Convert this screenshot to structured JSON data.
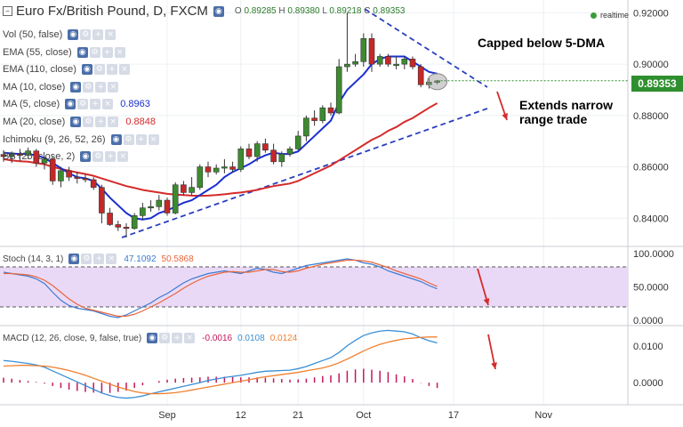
{
  "header": {
    "title": "Euro Fx/British Pound, D, FXCM",
    "ohlc": {
      "o_label": "O",
      "o": "0.89285",
      "h_label": "H",
      "h": "0.89380",
      "l_label": "L",
      "l": "0.89218",
      "c_label": "C",
      "c": "0.89353"
    },
    "realtime": "realtime"
  },
  "indicators": [
    {
      "label": "Vol (50, false)",
      "value": "",
      "color": "#555555"
    },
    {
      "label": "EMA (55, close)",
      "value": "",
      "color": "#555555"
    },
    {
      "label": "EMA (110, close)",
      "value": "",
      "color": "#555555"
    },
    {
      "label": "MA (10, close)",
      "value": "",
      "color": "#555555"
    },
    {
      "label": "MA (5, close)",
      "value": "0.8963",
      "color": "#1a2fcf"
    },
    {
      "label": "MA (20, close)",
      "value": "0.8848",
      "color": "#d42b2b"
    },
    {
      "label": "Ichimoku (9, 26, 52, 26)",
      "value": "",
      "color": "#555555"
    },
    {
      "label": "BB (20, close, 2)",
      "value": "",
      "color": "#555555"
    }
  ],
  "annotations": {
    "capped": "Capped below 5-DMA",
    "extends_line1": "Extends narrow",
    "extends_line2": "range trade"
  },
  "last_price": "0.89353",
  "colors": {
    "bull": "#3d8b2f",
    "bear": "#c62828",
    "ma5": "#1a2fcf",
    "ma20": "#d42b2b",
    "stoch_k": "#3a7bd5",
    "stoch_d": "#e8663c",
    "macd": "#3a8fd5",
    "signal": "#f08030",
    "hist": "#c2185b",
    "band": "#e8d5f5",
    "arrow": "#d42b2b",
    "trend": "#2a3fbf"
  },
  "stoch": {
    "label": "Stoch (14, 3, 1)",
    "k": "47.1092",
    "d": "50.5868",
    "axis": [
      "100.0000",
      "50.0000",
      "0.0000"
    ],
    "ylim": [
      0,
      100
    ],
    "bands": [
      80,
      20
    ]
  },
  "macd": {
    "label": "MACD (12, 26, close, 9, false, true)",
    "hist": "-0.0016",
    "macd": "0.0108",
    "signal": "0.0124",
    "axis": [
      "0.0100",
      "0.0000"
    ],
    "ylim": [
      -0.006,
      0.0155
    ]
  },
  "chart_data": {
    "type": "candlestick",
    "title": "Euro Fx/British Pound, D, FXCM",
    "ylim": [
      0.829,
      0.925
    ],
    "y_ticks": [
      0.84,
      0.86,
      0.88,
      0.9,
      0.92
    ],
    "y_tick_labels": [
      "0.84000",
      "0.86000",
      "0.88000",
      "0.90000",
      "0.92000"
    ],
    "x_tick_labels": [
      {
        "label": "Sep",
        "i": 20
      },
      {
        "label": "12",
        "i": 29
      },
      {
        "label": "21",
        "i": 36
      },
      {
        "label": "Oct",
        "i": 44
      },
      {
        "label": "17",
        "i": 55
      },
      {
        "label": "Nov",
        "i": 66
      }
    ],
    "candles": [
      [
        0.8648,
        0.8665,
        0.862,
        0.864
      ],
      [
        0.864,
        0.866,
        0.8615,
        0.865
      ],
      [
        0.865,
        0.867,
        0.8625,
        0.8645
      ],
      [
        0.8645,
        0.8675,
        0.863,
        0.8662
      ],
      [
        0.8662,
        0.867,
        0.86,
        0.8615
      ],
      [
        0.8615,
        0.864,
        0.859,
        0.863
      ],
      [
        0.863,
        0.864,
        0.853,
        0.8545
      ],
      [
        0.8545,
        0.86,
        0.852,
        0.8585
      ],
      [
        0.8585,
        0.86,
        0.8545,
        0.856
      ],
      [
        0.856,
        0.858,
        0.8535,
        0.8555
      ],
      [
        0.8555,
        0.857,
        0.854,
        0.855
      ],
      [
        0.855,
        0.856,
        0.851,
        0.852
      ],
      [
        0.852,
        0.853,
        0.838,
        0.842
      ],
      [
        0.842,
        0.844,
        0.837,
        0.8375
      ],
      [
        0.8375,
        0.839,
        0.835,
        0.8365
      ],
      [
        0.8365,
        0.838,
        0.8325,
        0.836
      ],
      [
        0.836,
        0.842,
        0.8355,
        0.841
      ],
      [
        0.841,
        0.846,
        0.8395,
        0.844
      ],
      [
        0.844,
        0.847,
        0.8425,
        0.8445
      ],
      [
        0.8445,
        0.849,
        0.843,
        0.847
      ],
      [
        0.847,
        0.848,
        0.841,
        0.842
      ],
      [
        0.842,
        0.854,
        0.8415,
        0.853
      ],
      [
        0.853,
        0.8545,
        0.849,
        0.85
      ],
      [
        0.85,
        0.856,
        0.849,
        0.852
      ],
      [
        0.852,
        0.861,
        0.851,
        0.86
      ],
      [
        0.86,
        0.862,
        0.856,
        0.858
      ],
      [
        0.858,
        0.861,
        0.857,
        0.8595
      ],
      [
        0.8595,
        0.863,
        0.8575,
        0.86
      ],
      [
        0.86,
        0.862,
        0.858,
        0.859
      ],
      [
        0.859,
        0.868,
        0.858,
        0.867
      ],
      [
        0.867,
        0.869,
        0.863,
        0.864
      ],
      [
        0.864,
        0.87,
        0.862,
        0.869
      ],
      [
        0.869,
        0.871,
        0.8655,
        0.8665
      ],
      [
        0.8665,
        0.869,
        0.861,
        0.862
      ],
      [
        0.862,
        0.866,
        0.86,
        0.865
      ],
      [
        0.865,
        0.868,
        0.864,
        0.867
      ],
      [
        0.867,
        0.874,
        0.8665,
        0.872
      ],
      [
        0.872,
        0.88,
        0.87,
        0.879
      ],
      [
        0.879,
        0.882,
        0.876,
        0.878
      ],
      [
        0.878,
        0.884,
        0.877,
        0.883
      ],
      [
        0.883,
        0.885,
        0.88,
        0.881
      ],
      [
        0.881,
        0.902,
        0.8805,
        0.899
      ],
      [
        0.899,
        0.92,
        0.897,
        0.9
      ],
      [
        0.9,
        0.904,
        0.899,
        0.901
      ],
      [
        0.901,
        0.912,
        0.899,
        0.91
      ],
      [
        0.91,
        0.912,
        0.897,
        0.9
      ],
      [
        0.9,
        0.904,
        0.899,
        0.903
      ],
      [
        0.903,
        0.904,
        0.899,
        0.9
      ],
      [
        0.9,
        0.903,
        0.898,
        0.9
      ],
      [
        0.9,
        0.903,
        0.898,
        0.902
      ],
      [
        0.902,
        0.903,
        0.898,
        0.899
      ],
      [
        0.899,
        0.9,
        0.891,
        0.892
      ],
      [
        0.892,
        0.8945,
        0.8905,
        0.893
      ],
      [
        0.8929,
        0.8938,
        0.8922,
        0.8935
      ]
    ],
    "ma5": [
      0.8655,
      0.8652,
      0.865,
      0.865,
      0.8645,
      0.8635,
      0.8615,
      0.8595,
      0.8575,
      0.856,
      0.8555,
      0.8545,
      0.8515,
      0.848,
      0.845,
      0.842,
      0.84,
      0.8395,
      0.84,
      0.842,
      0.843,
      0.8445,
      0.846,
      0.847,
      0.849,
      0.851,
      0.853,
      0.856,
      0.858,
      0.8595,
      0.861,
      0.863,
      0.8645,
      0.8655,
      0.865,
      0.865,
      0.866,
      0.869,
      0.872,
      0.875,
      0.878,
      0.885,
      0.89,
      0.893,
      0.896,
      0.9,
      0.902,
      0.903,
      0.903,
      0.903,
      0.901,
      0.899,
      0.897,
      0.8963
    ],
    "ma20": [
      0.863,
      0.8625,
      0.8622,
      0.862,
      0.8615,
      0.861,
      0.86,
      0.8592,
      0.8585,
      0.8578,
      0.8572,
      0.8565,
      0.8555,
      0.8545,
      0.8535,
      0.8525,
      0.8518,
      0.851,
      0.8505,
      0.85,
      0.8495,
      0.8492,
      0.849,
      0.8488,
      0.8487,
      0.8488,
      0.849,
      0.8493,
      0.8497,
      0.85,
      0.8505,
      0.851,
      0.8518,
      0.8525,
      0.853,
      0.8535,
      0.8545,
      0.856,
      0.8575,
      0.859,
      0.8605,
      0.8625,
      0.8645,
      0.8665,
      0.8685,
      0.8705,
      0.872,
      0.874,
      0.8755,
      0.8775,
      0.879,
      0.881,
      0.883,
      0.8848
    ],
    "stoch_k": [
      72,
      70,
      68,
      66,
      62,
      55,
      42,
      30,
      22,
      18,
      16,
      14,
      10,
      6,
      4,
      8,
      14,
      20,
      26,
      34,
      40,
      48,
      56,
      62,
      66,
      70,
      72,
      74,
      72,
      70,
      74,
      78,
      76,
      72,
      70,
      74,
      78,
      82,
      84,
      86,
      88,
      90,
      92,
      90,
      86,
      84,
      80,
      74,
      70,
      66,
      62,
      58,
      52,
      47
    ],
    "stoch_d": [
      70,
      70,
      69,
      68,
      65,
      60,
      52,
      42,
      32,
      24,
      18,
      15,
      12,
      9,
      6,
      6,
      9,
      14,
      20,
      26,
      33,
      40,
      48,
      55,
      61,
      66,
      69,
      72,
      73,
      72,
      72,
      74,
      76,
      76,
      73,
      72,
      74,
      78,
      81,
      84,
      86,
      88,
      90,
      90,
      89,
      87,
      83,
      79,
      74,
      70,
      66,
      62,
      56,
      50.6
    ],
    "macd_line": [
      0.006,
      0.0058,
      0.0055,
      0.0052,
      0.0048,
      0.0042,
      0.0032,
      0.0022,
      0.0012,
      0.0002,
      -0.0008,
      -0.0018,
      -0.0028,
      -0.0035,
      -0.004,
      -0.0042,
      -0.004,
      -0.0036,
      -0.003,
      -0.0025,
      -0.002,
      -0.0015,
      -0.001,
      -0.0005,
      0.0,
      0.0006,
      0.001,
      0.0014,
      0.0017,
      0.002,
      0.0024,
      0.0028,
      0.0031,
      0.0032,
      0.0033,
      0.0034,
      0.0038,
      0.0044,
      0.0052,
      0.006,
      0.0068,
      0.0082,
      0.01,
      0.0115,
      0.0128,
      0.0135,
      0.014,
      0.0142,
      0.014,
      0.0138,
      0.0132,
      0.0122,
      0.0114,
      0.0108
    ],
    "signal_line": [
      0.0045,
      0.0046,
      0.0047,
      0.0047,
      0.0046,
      0.0045,
      0.0042,
      0.0038,
      0.0033,
      0.0027,
      0.002,
      0.0012,
      0.0004,
      -0.0004,
      -0.0012,
      -0.0018,
      -0.0024,
      -0.0028,
      -0.003,
      -0.003,
      -0.0029,
      -0.0027,
      -0.0024,
      -0.002,
      -0.0016,
      -0.0012,
      -0.0008,
      -0.0004,
      0.0,
      0.0004,
      0.0008,
      0.0012,
      0.0016,
      0.0019,
      0.0022,
      0.0025,
      0.0028,
      0.0032,
      0.0036,
      0.004,
      0.0046,
      0.0054,
      0.0064,
      0.0075,
      0.0086,
      0.0096,
      0.0104,
      0.011,
      0.0115,
      0.0119,
      0.0121,
      0.0123,
      0.0124,
      0.0124
    ]
  }
}
